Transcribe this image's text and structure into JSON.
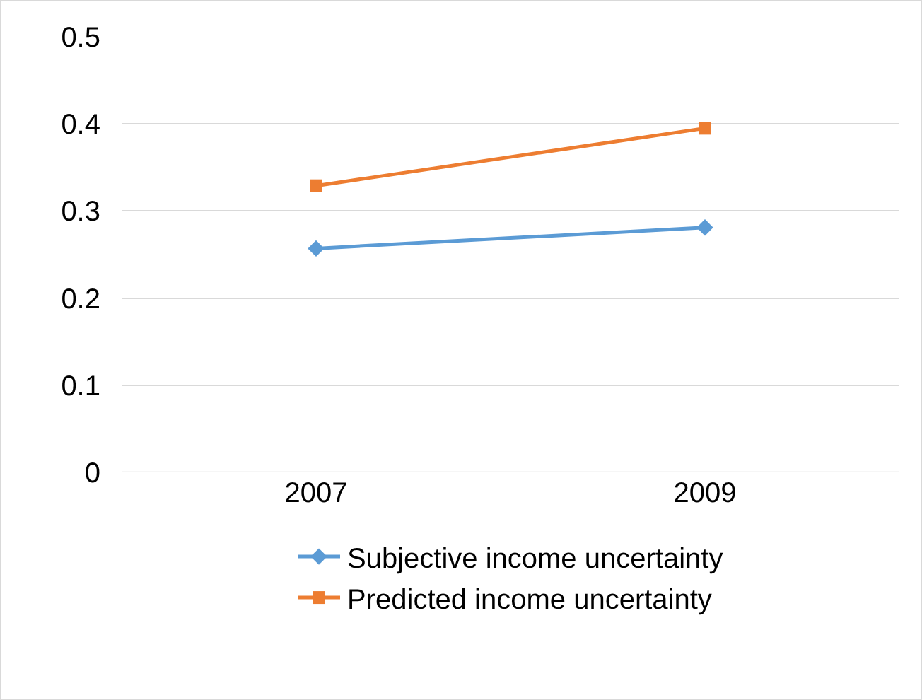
{
  "chart_data": {
    "type": "line",
    "categories": [
      "2007",
      "2009"
    ],
    "series": [
      {
        "name": "Subjective income uncertainty",
        "color": "#5b9bd5",
        "marker": "diamond",
        "values": [
          0.257,
          0.281
        ]
      },
      {
        "name": "Predicted income uncertainty",
        "color": "#ed7d31",
        "marker": "square",
        "values": [
          0.329,
          0.395
        ]
      }
    ],
    "ylim": [
      0,
      0.5
    ],
    "yticks": [
      0,
      0.1,
      0.2,
      0.3,
      0.4,
      0.5
    ],
    "grid": "y",
    "legend": "bottom"
  }
}
